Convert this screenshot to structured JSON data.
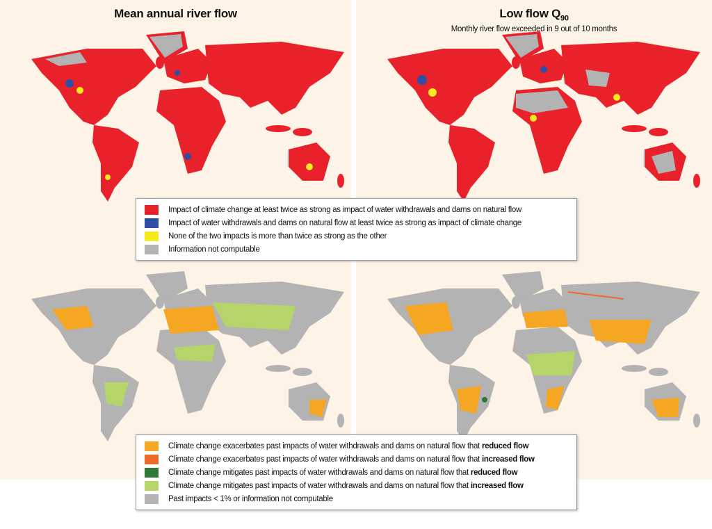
{
  "panels": [
    {
      "title": "Mean annual river flow"
    },
    {
      "title": {
        "main": "Low flow Q",
        "sub": "90"
      },
      "subtitle": "Monthly river flow exceeded in 9 out of 10 months"
    }
  ],
  "legends": [
    {
      "items": [
        {
          "color": "#e8212a",
          "text": "Impact of climate change at least twice as strong as impact of water withdrawals and dams on natural flow"
        },
        {
          "color": "#2e4fa3",
          "text": "Impact of water withdrawals and dams on natural flow at least twice as strong as impact of climate change"
        },
        {
          "color": "#f4ea1c",
          "text": "None of the two impacts is more than twice as strong as the other"
        },
        {
          "color": "#b3b3b3",
          "text": "Information not computable"
        }
      ]
    },
    {
      "items": [
        {
          "color": "#f5a623",
          "text": "Climate change exacerbates past impacts of water withdrawals and dams on natural flow that",
          "bold": "reduced flow"
        },
        {
          "color": "#ec6a2c",
          "text": "Climate change exacerbates past impacts of water withdrawals and dams on natural flow that",
          "bold": "increased flow"
        },
        {
          "color": "#2f7a32",
          "text": "Climate change mitigates past impacts of water withdrawals and dams on natural flow that",
          "bold": "reduced flow"
        },
        {
          "color": "#b5d56a",
          "text": "Climate change mitigates past impacts of water withdrawals and dams on natural flow that",
          "bold": "increased flow"
        },
        {
          "color": "#b3b3b3",
          "text": "Past impacts < 1% or information not computable"
        }
      ]
    }
  ]
}
